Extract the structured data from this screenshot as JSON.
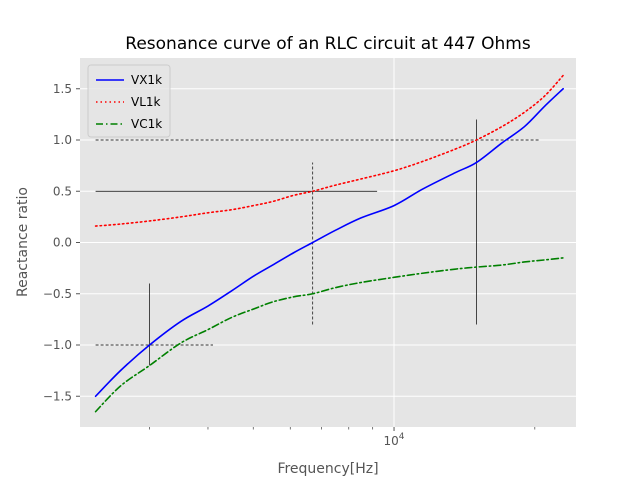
{
  "chart_data": {
    "type": "line",
    "title": "Resonance curve of an RLC circuit at 447 Ohms",
    "xlabel": "Frequency[Hz]",
    "ylabel": "Reactance ratio",
    "xscale": "log",
    "xlim": [
      2130,
      24500
    ],
    "ylim": [
      -1.8,
      1.8
    ],
    "grid": true,
    "legend_position": "top-left",
    "x_major_ticks": [
      {
        "value": 10000,
        "label": "10^4"
      }
    ],
    "x_minor_ticks": [
      3000,
      4000,
      5000,
      6000,
      7000,
      8000,
      9000,
      20000
    ],
    "y_ticks": [
      {
        "value": -1.5,
        "label": "−1.5"
      },
      {
        "value": -1.0,
        "label": "−1.0"
      },
      {
        "value": -0.5,
        "label": "−0.5"
      },
      {
        "value": 0.0,
        "label": "0.0"
      },
      {
        "value": 0.5,
        "label": "0.5"
      },
      {
        "value": 1.0,
        "label": "1.0"
      },
      {
        "value": 1.5,
        "label": "1.5"
      }
    ],
    "series": [
      {
        "name": "VX1k",
        "color": "#0000ff",
        "style": "solid",
        "x": [
          2300,
          2600,
          3000,
          3500,
          4000,
          4500,
          5000,
          5500,
          6100,
          6700,
          7500,
          8500,
          10000,
          11500,
          13500,
          15000,
          17000,
          19000,
          21000,
          23000
        ],
        "y": [
          -1.5,
          -1.25,
          -1.0,
          -0.77,
          -0.62,
          -0.47,
          -0.33,
          -0.22,
          -0.1,
          0.0,
          0.12,
          0.24,
          0.36,
          0.52,
          0.68,
          0.78,
          0.97,
          1.13,
          1.33,
          1.5
        ]
      },
      {
        "name": "VL1k",
        "color": "#ff0000",
        "style": "dotted",
        "x": [
          2300,
          2600,
          3000,
          3500,
          4000,
          4500,
          5000,
          5500,
          6100,
          6700,
          7500,
          8500,
          10000,
          11500,
          13500,
          15000,
          17000,
          19000,
          21000,
          23000
        ],
        "y": [
          0.16,
          0.18,
          0.21,
          0.25,
          0.29,
          0.32,
          0.36,
          0.4,
          0.46,
          0.5,
          0.56,
          0.62,
          0.7,
          0.79,
          0.91,
          1.0,
          1.13,
          1.27,
          1.43,
          1.63
        ]
      },
      {
        "name": "VC1k",
        "color": "#008000",
        "style": "dashdot",
        "x": [
          2300,
          2600,
          3000,
          3500,
          4000,
          4500,
          5000,
          5500,
          6100,
          6700,
          7500,
          8500,
          10000,
          11500,
          13500,
          15000,
          17000,
          19000,
          21000,
          23000
        ],
        "y": [
          -1.65,
          -1.4,
          -1.2,
          -0.98,
          -0.85,
          -0.73,
          -0.65,
          -0.58,
          -0.53,
          -0.5,
          -0.44,
          -0.39,
          -0.34,
          -0.3,
          -0.26,
          -0.24,
          -0.22,
          -0.19,
          -0.17,
          -0.15
        ]
      }
    ],
    "reference_lines": [
      {
        "orientation": "horizontal",
        "y": 1.0,
        "x_from": 2300,
        "x_to": 20500,
        "style": "dashed"
      },
      {
        "orientation": "horizontal",
        "y": 0.5,
        "x_from": 2300,
        "x_to": 9200,
        "style": "solid"
      },
      {
        "orientation": "horizontal",
        "y": -1.0,
        "x_from": 2300,
        "x_to": 4100,
        "style": "dashed"
      },
      {
        "orientation": "vertical",
        "x": 3000,
        "y_from": -1.2,
        "y_to": -0.4,
        "style": "solid"
      },
      {
        "orientation": "vertical",
        "x": 6700,
        "y_from": -0.8,
        "y_to": 0.78,
        "style": "dashed"
      },
      {
        "orientation": "vertical",
        "x": 15000,
        "y_from": -0.8,
        "y_to": 1.2,
        "style": "solid"
      }
    ]
  }
}
